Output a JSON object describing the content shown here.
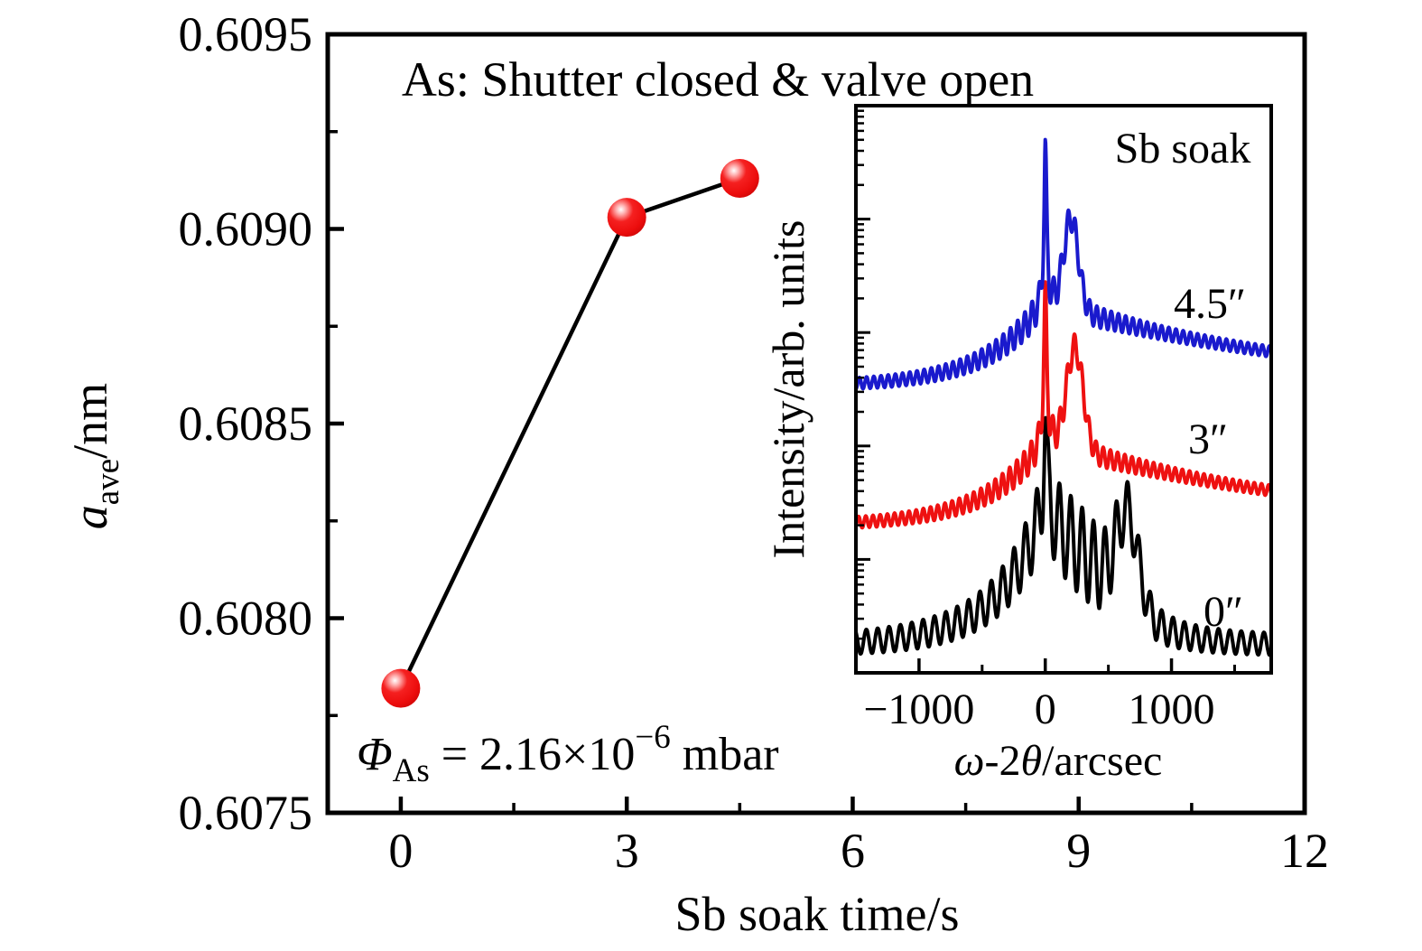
{
  "colors": {
    "frame": "#000000",
    "marker_red": "#ee1111",
    "curve_black": "#000000",
    "curve_red": "#ee1111",
    "curve_blue": "#1a1acd",
    "background": "#ffffff"
  },
  "main": {
    "title": "As: Shutter closed & valve open",
    "xlabel": "Sb soak time/s",
    "ylabel_parts": {
      "var": "a",
      "sub": "ave",
      "rest": "/nm"
    },
    "annotation_parts": {
      "sym": "Φ",
      "sub": "As",
      "eq": " = 2.16×10",
      "sup": "−6",
      "unit": " mbar"
    },
    "x_ticks": [
      {
        "v": 0,
        "label": "0"
      },
      {
        "v": 3,
        "label": "3"
      },
      {
        "v": 6,
        "label": "6"
      },
      {
        "v": 9,
        "label": "9"
      },
      {
        "v": 12,
        "label": "12"
      }
    ],
    "x_minor_ticks": [
      1.5,
      4.5,
      7.5,
      10.5
    ],
    "y_ticks": [
      {
        "v": 0.6095,
        "label": "0.6095"
      },
      {
        "v": 0.609,
        "label": "0.6090"
      },
      {
        "v": 0.6085,
        "label": "0.6085"
      },
      {
        "v": 0.608,
        "label": "0.6080"
      },
      {
        "v": 0.6075,
        "label": "0.6075"
      }
    ],
    "y_minor_ticks": [
      0.60925,
      0.60875,
      0.60825,
      0.60775
    ],
    "xlim": [
      -0.97,
      12
    ],
    "ylim": [
      0.6075,
      0.6095
    ]
  },
  "inset": {
    "legend_title": "Sb soak",
    "ylabel": "Intensity/arb. units",
    "xlabel_parts": {
      "omega": "ω",
      "mid": "-2",
      "theta": "θ",
      "rest": "/arcsec"
    },
    "x_ticks": [
      {
        "v": -1000,
        "label": "−1000"
      },
      {
        "v": 0,
        "label": "0"
      },
      {
        "v": 1000,
        "label": "1000"
      }
    ],
    "x_minor_ticks": [
      -500,
      500,
      1500
    ],
    "xlim": [
      -1500,
      1790
    ],
    "y_scale": "log",
    "log_decades": 5
  },
  "chart_data": [
    {
      "type": "scatter",
      "title": "As: Shutter closed & valve open",
      "xlabel": "Sb soak time/s",
      "ylabel": "a_ave/nm",
      "x": [
        0,
        3,
        4.5
      ],
      "y": [
        0.60782,
        0.60903,
        0.60913
      ],
      "xlim": [
        -1,
        12
      ],
      "ylim": [
        0.6075,
        0.6095
      ],
      "x_major_ticks": [
        0,
        3,
        6,
        9,
        12
      ],
      "y_major_ticks": [
        0.6075,
        0.608,
        0.6085,
        0.609,
        0.6095
      ],
      "annotation": "Φ_As = 2.16×10⁻⁶ mbar",
      "marker": "red-sphere",
      "marker_color": "#ee1111",
      "line_color": "#000000",
      "grid": false,
      "legend_position": "none"
    },
    {
      "type": "line",
      "title": "Sb soak",
      "xlabel": "ω-2θ/arcsec",
      "ylabel": "Intensity/arb. units",
      "y_scale": "log",
      "xlim": [
        -1500,
        1790
      ],
      "x_major_ticks": [
        -1000,
        0,
        1000
      ],
      "x_minor_ticks": [
        -500,
        500,
        1500
      ],
      "grid": false,
      "legend_position": "labels-right",
      "series": [
        {
          "name": "0″",
          "color": "#000000",
          "substrate_peak_arcsec": 0,
          "layer_peak_arcsec": 650,
          "fringe_period_arcsec": 90,
          "offset_level": "bottom",
          "synth": {
            "base": 0.048,
            "wing": 0.21,
            "decayL": 420,
            "decayR": 420,
            "plat": 0.06,
            "platPos": 330,
            "platW": 300,
            "sub": 0.15,
            "subW": 16,
            "layer": 0.16,
            "layerPos": 650,
            "layerW": 85,
            "fr0": 0.018,
            "fr1": 0.035,
            "frDecay": 600,
            "frT": 90,
            "midFr": 0.04,
            "midPos": 330,
            "midW": 280,
            "phase": 0
          }
        },
        {
          "name": "3″",
          "color": "#ee1111",
          "substrate_peak_arcsec": 0,
          "layer_peak_arcsec": 235,
          "fringe_period_arcsec": 57,
          "offset_level": "middle",
          "synth": {
            "base": 0.26,
            "wing": 0.15,
            "decayL": 450,
            "decayR": 2000,
            "plat": 0,
            "platPos": 0,
            "platW": 1,
            "sub": 0.25,
            "subW": 15,
            "layer": 0.18,
            "layerPos": 235,
            "layerW": 65,
            "fr0": 0.009,
            "fr1": 0.022,
            "frDecay": 500,
            "frT": 57,
            "midFr": 0,
            "midPos": 0,
            "midW": 1,
            "phase": 1.2
          }
        },
        {
          "name": "4.5″",
          "color": "#1a1acd",
          "substrate_peak_arcsec": 0,
          "layer_peak_arcsec": 205,
          "fringe_period_arcsec": 57,
          "offset_level": "top",
          "synth": {
            "base": 0.505,
            "wing": 0.15,
            "decayL": 450,
            "decayR": 2000,
            "plat": 0,
            "platPos": 0,
            "platW": 1,
            "sub": 0.27,
            "subW": 13,
            "layer": 0.16,
            "layerPos": 205,
            "layerW": 58,
            "fr0": 0.009,
            "fr1": 0.022,
            "frDecay": 500,
            "frT": 57,
            "midFr": 0,
            "midPos": 0,
            "midW": 1,
            "phase": 0.5
          }
        }
      ]
    }
  ]
}
